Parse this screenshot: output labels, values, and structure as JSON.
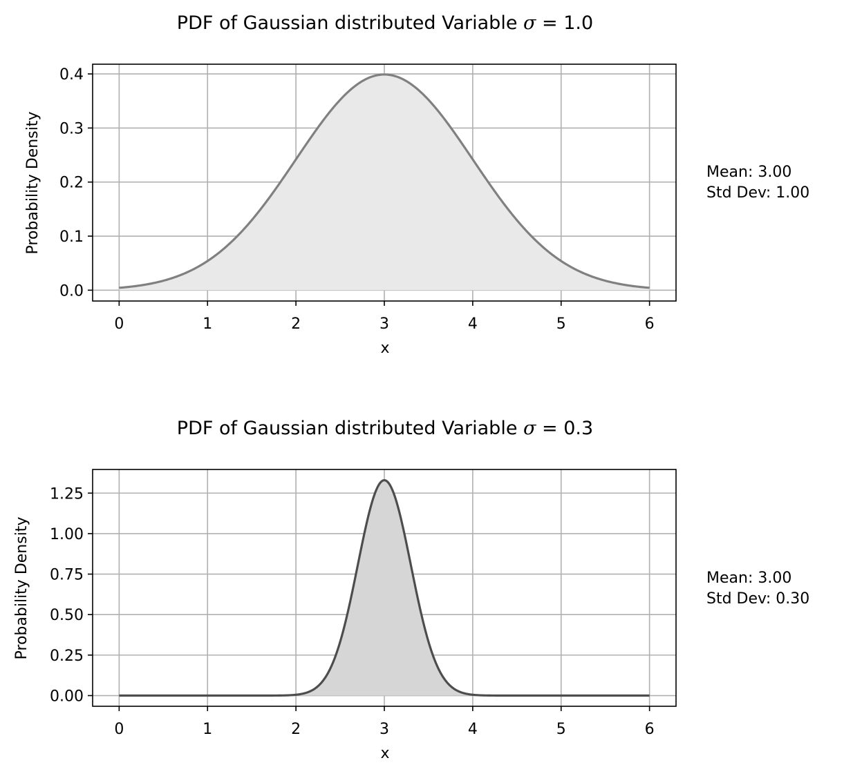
{
  "chart_data": [
    {
      "type": "area",
      "title": "PDF of Gaussian distributed Variable ",
      "title_symbol": "σ",
      "title_value": " = 1.0",
      "xlabel": "x",
      "ylabel": "Probability Density",
      "xlim": [
        -0.3,
        6.3
      ],
      "ylim": [
        -0.02,
        0.418
      ],
      "xticks": [
        0,
        1,
        2,
        3,
        4,
        5,
        6
      ],
      "xtick_labels": [
        "0",
        "1",
        "2",
        "3",
        "4",
        "5",
        "6"
      ],
      "yticks": [
        0.0,
        0.1,
        0.2,
        0.3,
        0.4
      ],
      "ytick_labels": [
        "0.0",
        "0.1",
        "0.2",
        "0.3",
        "0.4"
      ],
      "grid": true,
      "series": [
        {
          "distribution": "gaussian",
          "mean": 3.0,
          "std": 1.0,
          "x_range": [
            0,
            6
          ],
          "color": "#808080",
          "fill_color": "#e9e9e9"
        }
      ],
      "stats_text": [
        "Mean: 3.00",
        "Std Dev: 1.00"
      ]
    },
    {
      "type": "area",
      "title": "PDF of Gaussian distributed Variable ",
      "title_symbol": "σ",
      "title_value": " = 0.3",
      "xlabel": "x",
      "ylabel": "Probability Density",
      "xlim": [
        -0.3,
        6.3
      ],
      "ylim": [
        -0.066,
        1.396
      ],
      "xticks": [
        0,
        1,
        2,
        3,
        4,
        5,
        6
      ],
      "xtick_labels": [
        "0",
        "1",
        "2",
        "3",
        "4",
        "5",
        "6"
      ],
      "yticks": [
        0.0,
        0.25,
        0.5,
        0.75,
        1.0,
        1.25
      ],
      "ytick_labels": [
        "0.00",
        "0.25",
        "0.50",
        "0.75",
        "1.00",
        "1.25"
      ],
      "grid": true,
      "series": [
        {
          "distribution": "gaussian",
          "mean": 3.0,
          "std": 0.3,
          "x_range": [
            0,
            6
          ],
          "color": "#4d4d4d",
          "fill_color": "#d6d6d6"
        }
      ],
      "stats_text": [
        "Mean: 3.00",
        "Std Dev: 0.30"
      ]
    }
  ]
}
